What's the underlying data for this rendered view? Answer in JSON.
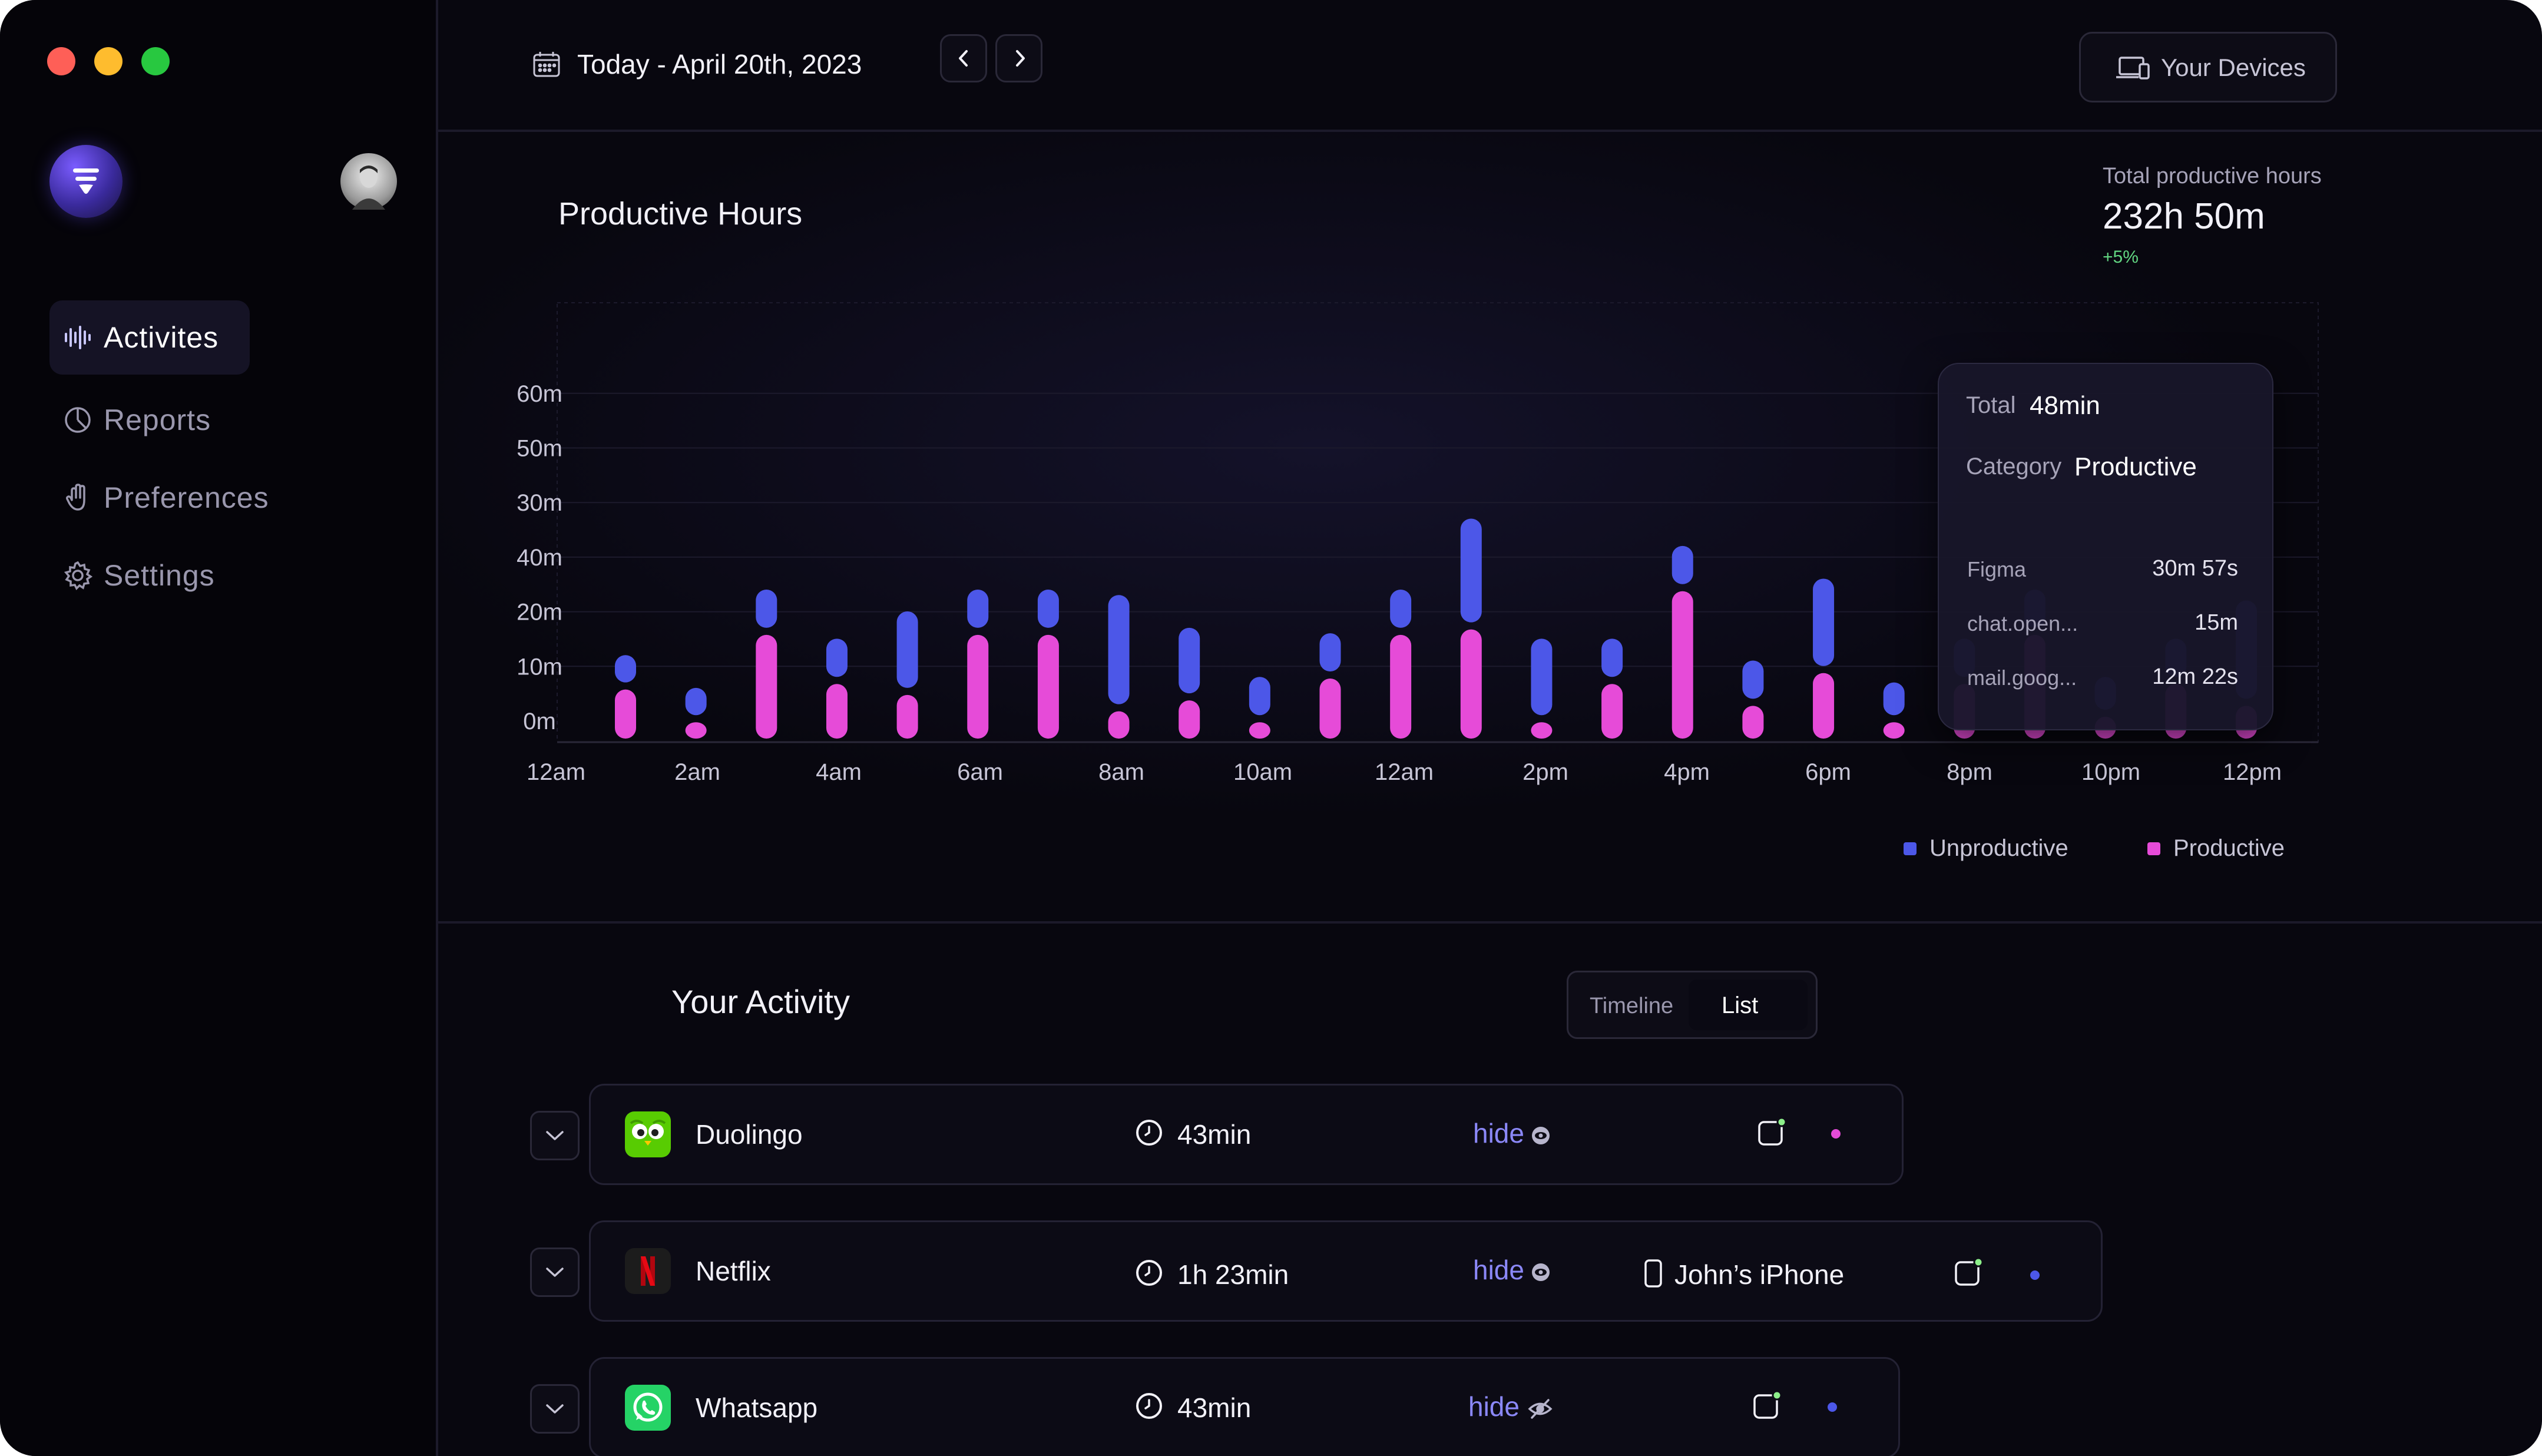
{
  "window": {
    "controls": [
      "close",
      "minimize",
      "zoom"
    ]
  },
  "sidebar": {
    "items": [
      {
        "label": "Activites",
        "icon": "waveform-icon",
        "active": true
      },
      {
        "label": "Reports",
        "icon": "pie-chart-icon",
        "active": false
      },
      {
        "label": "Preferences",
        "icon": "hand-icon",
        "active": false
      },
      {
        "label": "Settings",
        "icon": "gear-icon",
        "active": false
      }
    ]
  },
  "header": {
    "date": "Today - April 20th, 2023",
    "devices_label": "Your Devices"
  },
  "summary": {
    "title": "Productive Hours",
    "total_label": "Total productive hours",
    "total_value": "232h 50m",
    "delta": "+5%"
  },
  "tooltip": {
    "total_key": "Total",
    "total_value": "48min",
    "category_key": "Category",
    "category_value": "Productive",
    "apps": [
      {
        "name": "Figma",
        "duration": "30m 57s"
      },
      {
        "name": "chat.open...",
        "duration": "15m"
      },
      {
        "name": "mail.goog...",
        "duration": "12m 22s"
      }
    ]
  },
  "chart_data": {
    "type": "bar",
    "stacked": true,
    "title": "Productive Hours",
    "y_tick_labels": [
      "0m",
      "10m",
      "20m",
      "40m",
      "30m",
      "50m",
      "60m"
    ],
    "x_tick_labels": [
      "12am",
      "2am",
      "4am",
      "6am",
      "8am",
      "10am",
      "12am",
      "2pm",
      "4pm",
      "6pm",
      "8pm",
      "10pm",
      "12pm"
    ],
    "x_index": [
      1,
      2,
      3,
      4,
      5,
      6,
      7,
      8,
      9,
      10,
      11,
      12,
      13,
      14,
      15,
      16,
      17,
      18,
      19,
      20,
      21,
      22,
      23,
      24
    ],
    "series": [
      {
        "name": "Productive",
        "values": [
          9,
          3,
          19,
          10,
          8,
          19,
          19,
          5,
          7,
          3,
          11,
          19,
          20,
          3,
          10,
          27,
          6,
          12,
          3,
          10,
          19,
          4,
          10,
          6
        ]
      },
      {
        "name": "Unproductive",
        "values": [
          5,
          5,
          7,
          7,
          14,
          7,
          7,
          20,
          12,
          7,
          7,
          7,
          19,
          14,
          7,
          7,
          7,
          16,
          6,
          7,
          7,
          6,
          7,
          18
        ]
      }
    ],
    "colors": {
      "Productive": "#e64bd8",
      "Unproductive": "#4c57e8"
    },
    "grid": true,
    "legend": "bottom-right"
  },
  "activity": {
    "title": "Your Activity",
    "views": [
      "Timeline",
      "List"
    ],
    "selected_view": "List",
    "rows": [
      {
        "app": "Duolingo",
        "duration": "43min",
        "action": "hide",
        "device": "",
        "status_color": "#e64bd8"
      },
      {
        "app": "Netflix",
        "duration": "1h 23min",
        "action": "hide",
        "device": "John’s iPhone",
        "status_color": "#4c57e8"
      },
      {
        "app": "Whatsapp",
        "duration": "43min",
        "action": "hide",
        "device": "",
        "status_color": "#4c57e8"
      }
    ]
  }
}
